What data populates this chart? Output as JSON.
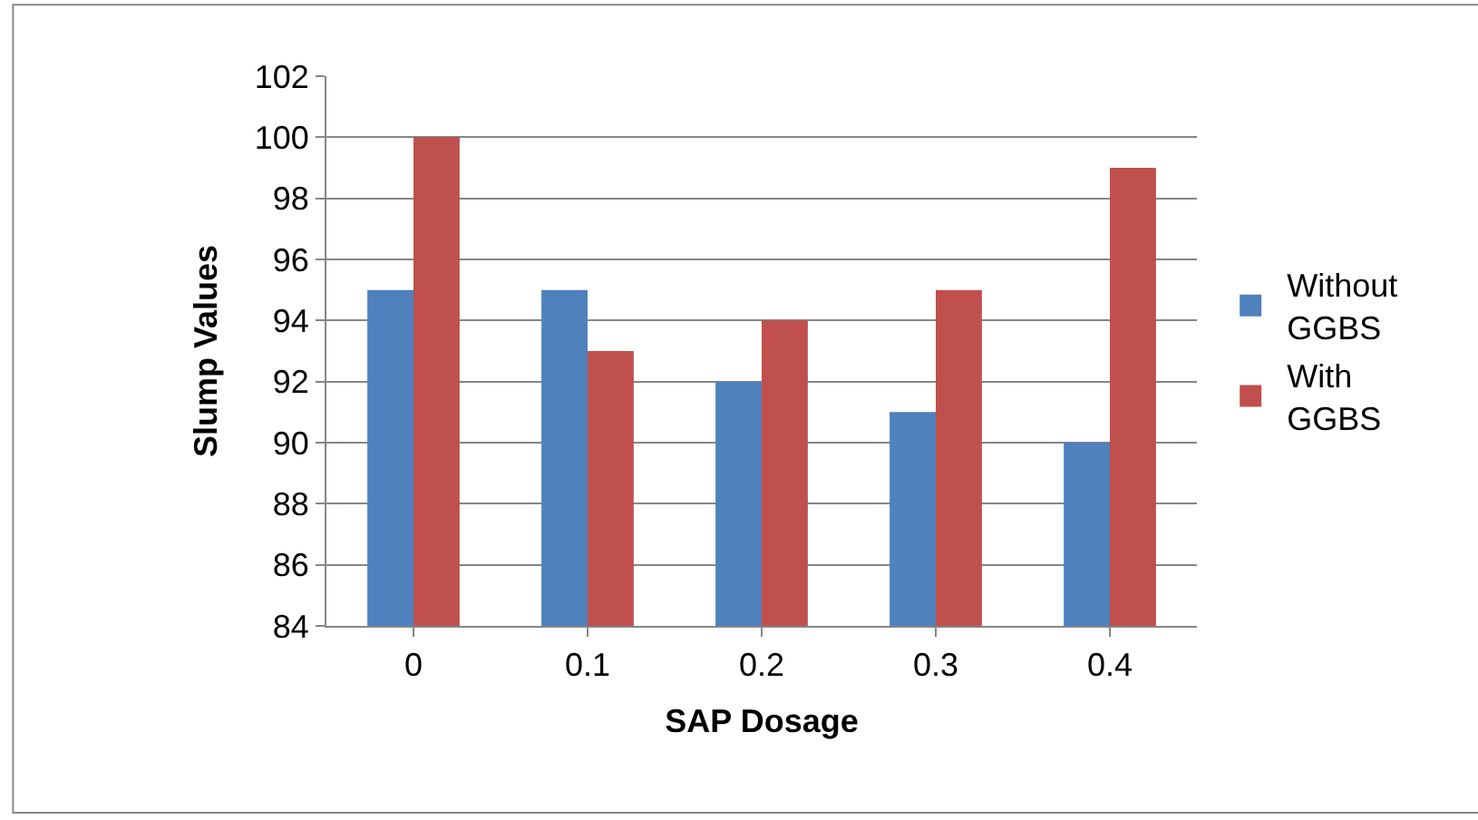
{
  "chart_data": {
    "type": "bar",
    "xlabel": "SAP Dosage",
    "ylabel": "Slump Values",
    "categories": [
      "0",
      "0.1",
      "0.2",
      "0.3",
      "0.4"
    ],
    "series": [
      {
        "name": "Without GGBS",
        "color": "#4f81bd",
        "values": [
          95,
          95,
          92,
          91,
          90
        ]
      },
      {
        "name": "With GGBS",
        "color": "#c0504d",
        "values": [
          100,
          93,
          94,
          95,
          99
        ]
      }
    ],
    "ylim": [
      84,
      102
    ],
    "yticks": [
      84,
      86,
      88,
      90,
      92,
      94,
      96,
      98,
      100,
      102
    ],
    "grid": "y",
    "legend": "right"
  }
}
